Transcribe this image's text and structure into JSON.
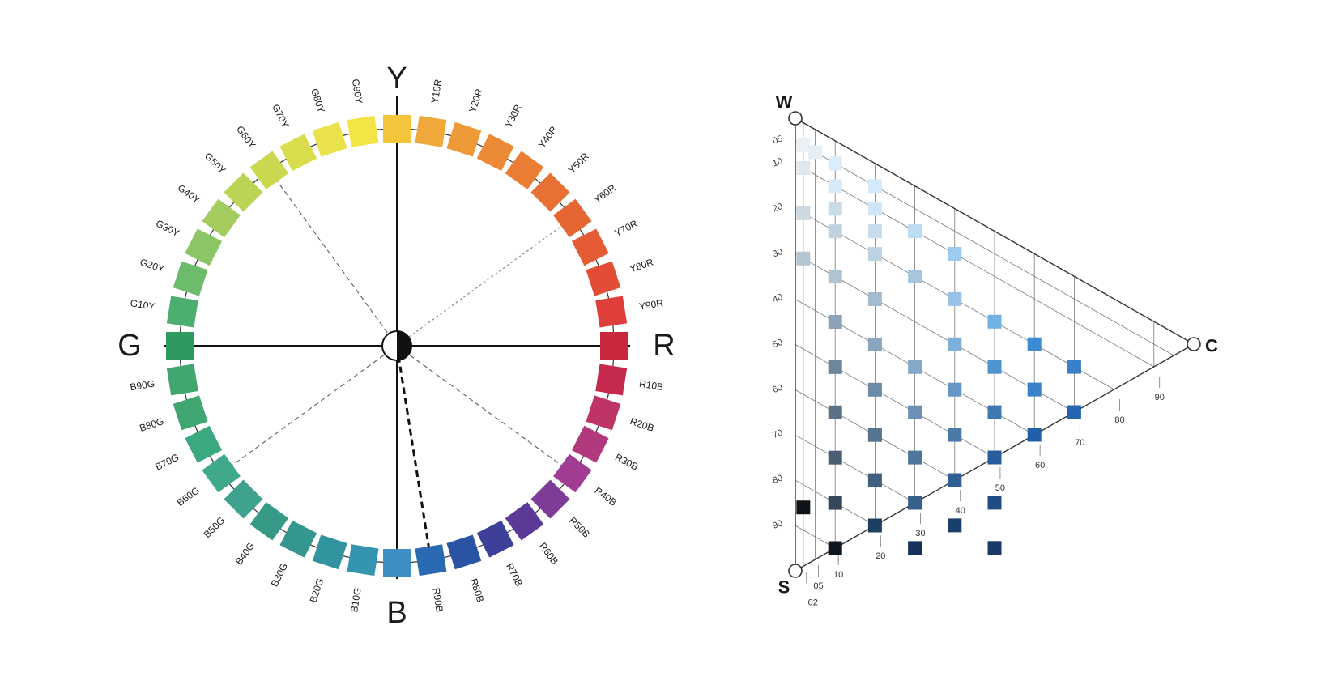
{
  "hue_circle": {
    "poles": [
      {
        "name": "Y",
        "angle": 0
      },
      {
        "name": "R",
        "angle": 90
      },
      {
        "name": "B",
        "angle": 180
      },
      {
        "name": "G",
        "angle": 270
      }
    ],
    "hues": [
      {
        "label": "Y",
        "color": "#f2c53a",
        "show_label": false
      },
      {
        "label": "Y10R",
        "color": "#f0a83a"
      },
      {
        "label": "Y20R",
        "color": "#ee9a38"
      },
      {
        "label": "Y30R",
        "color": "#ec8a36"
      },
      {
        "label": "Y40R",
        "color": "#e97d34"
      },
      {
        "label": "Y50R",
        "color": "#e77133"
      },
      {
        "label": "Y60R",
        "color": "#e56633"
      },
      {
        "label": "Y70R",
        "color": "#e45b34"
      },
      {
        "label": "Y80R",
        "color": "#e24d36"
      },
      {
        "label": "Y90R",
        "color": "#df3f3a"
      },
      {
        "label": "R",
        "color": "#c8283b",
        "show_label": false
      },
      {
        "label": "R10B",
        "color": "#c52a4e"
      },
      {
        "label": "R20B",
        "color": "#bf3466"
      },
      {
        "label": "R30B",
        "color": "#b2397d"
      },
      {
        "label": "R40B",
        "color": "#a03c91"
      },
      {
        "label": "R50B",
        "color": "#7e3c96"
      },
      {
        "label": "R60B",
        "color": "#5b3996"
      },
      {
        "label": "R70B",
        "color": "#3d3f98"
      },
      {
        "label": "R80B",
        "color": "#2a53a3"
      },
      {
        "label": "R90B",
        "color": "#2a6ab3"
      },
      {
        "label": "B",
        "color": "#3d8fc5",
        "show_label": false
      },
      {
        "label": "B10G",
        "color": "#3594ae"
      },
      {
        "label": "B20G",
        "color": "#32949f"
      },
      {
        "label": "B30G",
        "color": "#34968f"
      },
      {
        "label": "B40G",
        "color": "#379a86"
      },
      {
        "label": "B50G",
        "color": "#3fa28e"
      },
      {
        "label": "B60G",
        "color": "#40a98c"
      },
      {
        "label": "B70G",
        "color": "#3ba87f"
      },
      {
        "label": "B80G",
        "color": "#40a773"
      },
      {
        "label": "B90G",
        "color": "#40a56f"
      },
      {
        "label": "G",
        "color": "#2f9a5f",
        "show_label": false
      },
      {
        "label": "G10Y",
        "color": "#4daf6f"
      },
      {
        "label": "G20Y",
        "color": "#6dbc6c"
      },
      {
        "label": "G30Y",
        "color": "#8cc566"
      },
      {
        "label": "G40Y",
        "color": "#a5cc5e"
      },
      {
        "label": "G50Y",
        "color": "#bcd455"
      },
      {
        "label": "G60Y",
        "color": "#cad84f"
      },
      {
        "label": "G70Y",
        "color": "#d8dd4c"
      },
      {
        "label": "G80Y",
        "color": "#e9e24a"
      },
      {
        "label": "G90Y",
        "color": "#f4e547"
      }
    ],
    "dashed_spokes": [
      {
        "hue": "G60Y",
        "style": "light"
      },
      {
        "hue": "Y60R",
        "style": "dotted"
      },
      {
        "hue": "R40B",
        "style": "light"
      },
      {
        "hue": "B60G",
        "style": "light"
      },
      {
        "hue": "R90B",
        "style": "bold"
      }
    ]
  },
  "nuance_triangle": {
    "corners": {
      "white": "W",
      "black": "S",
      "chroma": "C"
    },
    "blackness_ticks": [
      "05",
      "10",
      "20",
      "30",
      "40",
      "50",
      "60",
      "70",
      "80",
      "90"
    ],
    "chromaticness_ticks": [
      "02",
      "05",
      "10",
      "20",
      "30",
      "40",
      "50",
      "60",
      "70",
      "80",
      "90"
    ],
    "samples": [
      {
        "s": 5,
        "c": 2,
        "color": "#eaf0f4"
      },
      {
        "s": 10,
        "c": 2,
        "color": "#e0e8ee"
      },
      {
        "s": 5,
        "c": 5,
        "color": "#e6eef5"
      },
      {
        "s": 10,
        "c": 10,
        "color": "#d8eaf8"
      },
      {
        "s": 5,
        "c": 10,
        "color": "#dcecf9"
      },
      {
        "s": 10,
        "c": 20,
        "color": "#cfe6f8"
      },
      {
        "s": 5,
        "c": 20,
        "color": "#d4e9f9"
      },
      {
        "s": 20,
        "c": 2,
        "color": "#ccd9e1"
      },
      {
        "s": 15,
        "c": 10,
        "color": "#c9dbe7"
      },
      {
        "s": 15,
        "c": 20,
        "color": "#c7dcea"
      },
      {
        "s": 20,
        "c": 10,
        "color": "#bfd2de"
      },
      {
        "s": 20,
        "c": 20,
        "color": "#bdd3e2"
      },
      {
        "s": 10,
        "c": 30,
        "color": "#bcdcf3"
      },
      {
        "s": 30,
        "c": 2,
        "color": "#b5c6d1"
      },
      {
        "s": 30,
        "c": 10,
        "color": "#b0c3d0"
      },
      {
        "s": 30,
        "c": 20,
        "color": "#a3bcd0"
      },
      {
        "s": 20,
        "c": 30,
        "color": "#a5c6de"
      },
      {
        "s": 10,
        "c": 40,
        "color": "#9dcbf0"
      },
      {
        "s": 20,
        "c": 40,
        "color": "#98c3e6"
      },
      {
        "s": 40,
        "c": 10,
        "color": "#8ca2b6"
      },
      {
        "s": 40,
        "c": 20,
        "color": "#8aa6bf"
      },
      {
        "s": 40,
        "c": 30,
        "color": "#84a9c8"
      },
      {
        "s": 30,
        "c": 40,
        "color": "#7fb0d9"
      },
      {
        "s": 20,
        "c": 50,
        "color": "#72b2e3"
      },
      {
        "s": 50,
        "c": 10,
        "color": "#6e869c"
      },
      {
        "s": 50,
        "c": 20,
        "color": "#6c8ba7"
      },
      {
        "s": 50,
        "c": 30,
        "color": "#6a90b5"
      },
      {
        "s": 40,
        "c": 40,
        "color": "#6497c6"
      },
      {
        "s": 30,
        "c": 50,
        "color": "#4e95cf"
      },
      {
        "s": 20,
        "c": 60,
        "color": "#3b8cd2"
      },
      {
        "s": 30,
        "c": 60,
        "color": "#3a82c8"
      },
      {
        "s": 20,
        "c": 70,
        "color": "#3980c6"
      },
      {
        "s": 60,
        "c": 10,
        "color": "#5a7186"
      },
      {
        "s": 60,
        "c": 20,
        "color": "#557490"
      },
      {
        "s": 60,
        "c": 30,
        "color": "#4f779c"
      },
      {
        "s": 50,
        "c": 40,
        "color": "#4b7aa8"
      },
      {
        "s": 40,
        "c": 50,
        "color": "#3f79b1"
      },
      {
        "s": 70,
        "c": 10,
        "color": "#4b5f72"
      },
      {
        "s": 70,
        "c": 20,
        "color": "#3f6080"
      },
      {
        "s": 70,
        "c": 30,
        "color": "#35618a"
      },
      {
        "s": 60,
        "c": 40,
        "color": "#2f5f92"
      },
      {
        "s": 50,
        "c": 50,
        "color": "#275d9c"
      },
      {
        "s": 40,
        "c": 60,
        "color": "#2160a8"
      },
      {
        "s": 30,
        "c": 70,
        "color": "#2565b0"
      },
      {
        "s": 60,
        "c": 50,
        "color": "#1f4d83"
      },
      {
        "s": 80,
        "c": 10,
        "color": "#36475a"
      },
      {
        "s": 80,
        "c": 20,
        "color": "#1f3f60"
      },
      {
        "s": 70,
        "c": 40,
        "color": "#1a3f6c"
      },
      {
        "s": 70,
        "c": 50,
        "color": "#183a68"
      },
      {
        "s": 80,
        "c": 30,
        "color": "#15335a"
      },
      {
        "s": 85,
        "c": 2,
        "color": "#101418"
      },
      {
        "s": 90,
        "c": 10,
        "color": "#0e1620"
      }
    ]
  }
}
